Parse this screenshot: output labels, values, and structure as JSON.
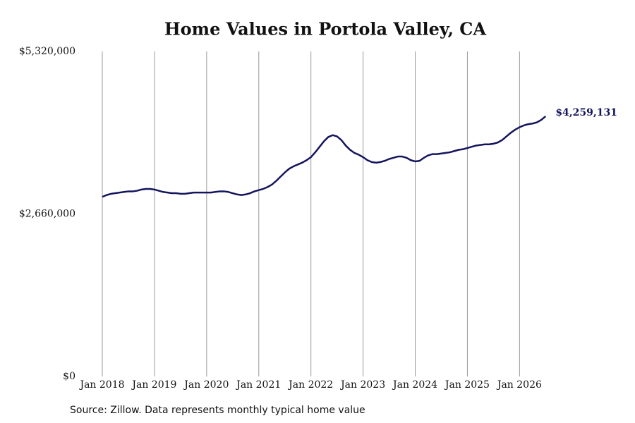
{
  "chart_data": {
    "type": "line",
    "title": "Home Values in Portola Valley, CA",
    "source": "Source: Zillow. Data represents monthly typical home value",
    "color": "#14145c",
    "grid": "x",
    "ylim": [
      0,
      5320000
    ],
    "yticks": [
      {
        "value": 0,
        "label": "$0"
      },
      {
        "value": 2660000,
        "label": "$2,660,000"
      },
      {
        "value": 5320000,
        "label": "$5,320,000"
      }
    ],
    "xticks": [
      {
        "value": "2018-01",
        "label": "Jan 2018"
      },
      {
        "value": "2019-01",
        "label": "Jan 2019"
      },
      {
        "value": "2020-01",
        "label": "Jan 2020"
      },
      {
        "value": "2021-01",
        "label": "Jan 2021"
      },
      {
        "value": "2022-01",
        "label": "Jan 2022"
      },
      {
        "value": "2023-01",
        "label": "Jan 2023"
      },
      {
        "value": "2024-01",
        "label": "Jan 2024"
      },
      {
        "value": "2025-01",
        "label": "Jan 2025"
      },
      {
        "value": "2026-01",
        "label": "Jan 2026"
      }
    ],
    "x": [
      "2018-01",
      "2018-02",
      "2018-03",
      "2018-04",
      "2018-05",
      "2018-06",
      "2018-07",
      "2018-08",
      "2018-09",
      "2018-10",
      "2018-11",
      "2018-12",
      "2019-01",
      "2019-02",
      "2019-03",
      "2019-04",
      "2019-05",
      "2019-06",
      "2019-07",
      "2019-08",
      "2019-09",
      "2019-10",
      "2019-11",
      "2019-12",
      "2020-01",
      "2020-02",
      "2020-03",
      "2020-04",
      "2020-05",
      "2020-06",
      "2020-07",
      "2020-08",
      "2020-09",
      "2020-10",
      "2020-11",
      "2020-12",
      "2021-01",
      "2021-02",
      "2021-03",
      "2021-04",
      "2021-05",
      "2021-06",
      "2021-07",
      "2021-08",
      "2021-09",
      "2021-10",
      "2021-11",
      "2021-12",
      "2022-01",
      "2022-02",
      "2022-03",
      "2022-04",
      "2022-05",
      "2022-06",
      "2022-07",
      "2022-08",
      "2022-09",
      "2022-10",
      "2022-11",
      "2022-12",
      "2023-01",
      "2023-02",
      "2023-03",
      "2023-04",
      "2023-05",
      "2023-06",
      "2023-07",
      "2023-08",
      "2023-09",
      "2023-10",
      "2023-11",
      "2023-12",
      "2024-01",
      "2024-02",
      "2024-03",
      "2024-04",
      "2024-05",
      "2024-06",
      "2024-07",
      "2024-08",
      "2024-09",
      "2024-10",
      "2024-11",
      "2024-12",
      "2025-01",
      "2025-02",
      "2025-03",
      "2025-04",
      "2025-05",
      "2025-06",
      "2025-07",
      "2025-08",
      "2025-09",
      "2025-10",
      "2025-11",
      "2025-12",
      "2026-01",
      "2026-02",
      "2026-03",
      "2026-04",
      "2026-05",
      "2026-06",
      "2026-07"
    ],
    "values": [
      2940000,
      2970000,
      2990000,
      3000000,
      3010000,
      3020000,
      3030000,
      3030000,
      3040000,
      3060000,
      3070000,
      3070000,
      3060000,
      3040000,
      3020000,
      3010000,
      3000000,
      3000000,
      2990000,
      2990000,
      3000000,
      3010000,
      3010000,
      3010000,
      3010000,
      3010000,
      3020000,
      3030000,
      3030000,
      3020000,
      3000000,
      2980000,
      2970000,
      2980000,
      3000000,
      3030000,
      3050000,
      3070000,
      3100000,
      3140000,
      3200000,
      3270000,
      3340000,
      3400000,
      3440000,
      3470000,
      3500000,
      3540000,
      3590000,
      3670000,
      3760000,
      3850000,
      3920000,
      3950000,
      3930000,
      3870000,
      3780000,
      3710000,
      3660000,
      3630000,
      3590000,
      3540000,
      3510000,
      3500000,
      3510000,
      3530000,
      3560000,
      3580000,
      3600000,
      3600000,
      3580000,
      3540000,
      3520000,
      3530000,
      3580000,
      3620000,
      3640000,
      3640000,
      3650000,
      3660000,
      3670000,
      3690000,
      3710000,
      3720000,
      3740000,
      3760000,
      3780000,
      3790000,
      3800000,
      3800000,
      3810000,
      3830000,
      3870000,
      3930000,
      3990000,
      4040000,
      4080000,
      4110000,
      4130000,
      4140000,
      4160000,
      4200000,
      4259131
    ],
    "value_labels": [
      null,
      null,
      null,
      null,
      null,
      null,
      null,
      null,
      null,
      null,
      null,
      null,
      null,
      null,
      null,
      null,
      null,
      null,
      null,
      null,
      null,
      null,
      null,
      null,
      null,
      null,
      null,
      null,
      null,
      null,
      null,
      null,
      null,
      null,
      null,
      null,
      null,
      null,
      null,
      null,
      null,
      null,
      null,
      null,
      null,
      null,
      null,
      null,
      null,
      null,
      null,
      null,
      null,
      null,
      null,
      null,
      null,
      null,
      null,
      null,
      null,
      null,
      null,
      null,
      null,
      null,
      null,
      null,
      null,
      null,
      null,
      null,
      null,
      null,
      null,
      null,
      null,
      null,
      null,
      null,
      null,
      null,
      null,
      null,
      null,
      null,
      null,
      null,
      null,
      null,
      null,
      null,
      null,
      null,
      null,
      null,
      null,
      null,
      null,
      null,
      null,
      null,
      "$4,259,131"
    ]
  }
}
